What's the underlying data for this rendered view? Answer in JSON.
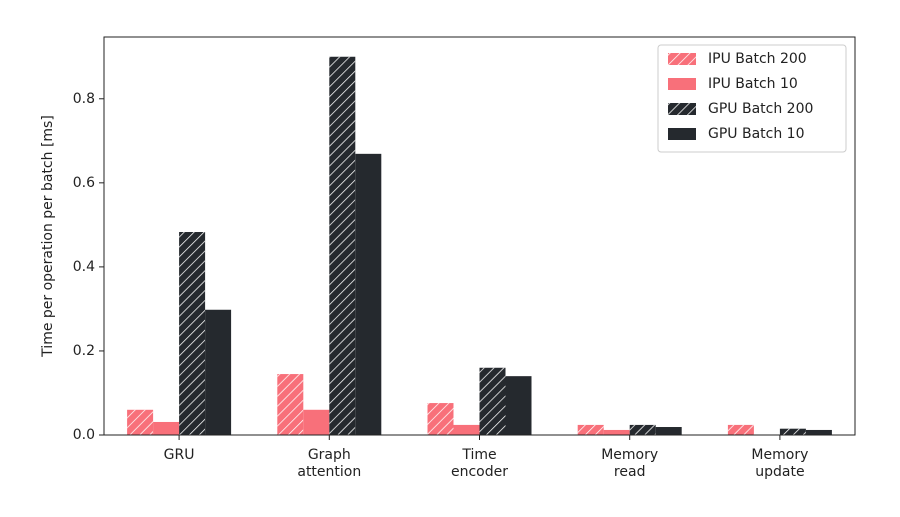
{
  "chart_data": {
    "type": "bar",
    "ylabel": "Time per operation per batch [ms]",
    "categories": [
      "GRU",
      "Graph\nattention",
      "Time\nencoder",
      "Memory\nread",
      "Memory\nupdate"
    ],
    "series": [
      {
        "name": "IPU Batch 200",
        "color": "#f8707a",
        "hatch": true,
        "values": [
          0.06,
          0.145,
          0.076,
          0.024,
          0.024
        ]
      },
      {
        "name": "IPU Batch 10",
        "color": "#f8707a",
        "hatch": false,
        "values": [
          0.031,
          0.06,
          0.024,
          0.012,
          0
        ]
      },
      {
        "name": "GPU Batch 200",
        "color": "#25292e",
        "hatch": true,
        "values": [
          0.483,
          0.9,
          0.16,
          0.024,
          0.015
        ]
      },
      {
        "name": "GPU Batch 10",
        "color": "#25292e",
        "hatch": false,
        "values": [
          0.298,
          0.669,
          0.14,
          0.019,
          0.012
        ]
      }
    ],
    "ylim": [
      0,
      0.947
    ],
    "yticks": [
      {
        "value": 0,
        "label": "0.0"
      },
      0.2,
      0.4,
      0.6,
      0.8
    ],
    "legend": "upper right"
  }
}
